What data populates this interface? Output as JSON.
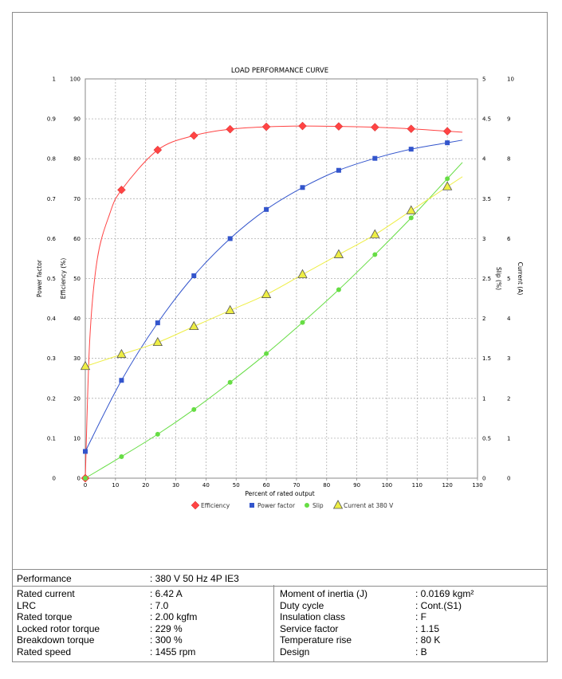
{
  "chart_data": {
    "type": "line",
    "title": "LOAD PERFORMANCE CURVE",
    "xlabel": "Percent of rated output",
    "xlim": [
      0,
      130
    ],
    "x_ticks": [
      0,
      10,
      20,
      30,
      40,
      50,
      60,
      70,
      80,
      90,
      100,
      110,
      120,
      130
    ],
    "grid": true,
    "legend_position": "bottom",
    "axes": [
      {
        "id": "pf",
        "label": "Power factor",
        "side": "left-outer",
        "range": [
          0,
          1
        ],
        "ticks": [
          "0",
          "0.1",
          "0.2",
          "0.3",
          "0.4",
          "0.5",
          "0.6",
          "0.7",
          "0.8",
          "0.9",
          "1"
        ]
      },
      {
        "id": "eff",
        "label": "Efficiency (%)",
        "side": "left-inner",
        "range": [
          0,
          100
        ],
        "ticks": [
          "0",
          "10",
          "20",
          "30",
          "40",
          "50",
          "60",
          "70",
          "80",
          "90",
          "100"
        ]
      },
      {
        "id": "slip",
        "label": "Slip (%)",
        "side": "right-inner",
        "range": [
          0,
          5
        ],
        "ticks": [
          "0",
          "0.5",
          "1",
          "1.5",
          "2",
          "2.5",
          "3",
          "3.5",
          "4",
          "4.5",
          "5"
        ]
      },
      {
        "id": "cur",
        "label": "Current (A)",
        "side": "right-outer",
        "range": [
          0,
          10
        ],
        "ticks": [
          "0",
          "1",
          "2",
          "3",
          "4",
          "5",
          "6",
          "7",
          "8",
          "9",
          "10"
        ]
      }
    ],
    "series": [
      {
        "name": "Efficiency",
        "axis": "eff",
        "color": "#ff4444",
        "marker": "diamond",
        "x": [
          0,
          12,
          24,
          36,
          48,
          60,
          72,
          84,
          96,
          108,
          120
        ],
        "y": [
          0,
          72.2,
          82.2,
          85.8,
          87.4,
          88.0,
          88.2,
          88.1,
          87.9,
          87.5,
          86.9
        ]
      },
      {
        "name": "Power factor",
        "axis": "pf",
        "color": "#3355cc",
        "marker": "square",
        "x": [
          0,
          12,
          24,
          36,
          48,
          60,
          72,
          84,
          96,
          108,
          120
        ],
        "y": [
          0.067,
          0.245,
          0.389,
          0.507,
          0.6,
          0.673,
          0.728,
          0.771,
          0.801,
          0.824,
          0.84
        ]
      },
      {
        "name": "Slip",
        "axis": "slip",
        "color": "#66dd44",
        "marker": "circle",
        "x": [
          0,
          12,
          24,
          36,
          48,
          60,
          72,
          84,
          96,
          108,
          120
        ],
        "y": [
          0,
          0.27,
          0.55,
          0.86,
          1.2,
          1.56,
          1.95,
          2.36,
          2.8,
          3.26,
          3.75
        ]
      },
      {
        "name": "Current at 380 V",
        "axis": "cur",
        "color": "#eeee44",
        "marker": "triangle",
        "x": [
          0,
          12,
          24,
          36,
          48,
          60,
          72,
          84,
          96,
          108,
          120
        ],
        "y": [
          2.8,
          3.1,
          3.4,
          3.8,
          4.2,
          4.6,
          5.1,
          5.6,
          6.1,
          6.7,
          7.3
        ]
      }
    ]
  },
  "table": {
    "performance_label": "Performance",
    "performance_value": ": 380 V 50 Hz 4P IE3",
    "left_rows": [
      {
        "label": "Rated current",
        "value": ": 6.42 A"
      },
      {
        "label": "LRC",
        "value": ": 7.0"
      },
      {
        "label": "Rated torque",
        "value": ": 2.00 kgfm"
      },
      {
        "label": "Locked rotor torque",
        "value": ": 229 %"
      },
      {
        "label": "Breakdown torque",
        "value": ": 300 %"
      },
      {
        "label": "Rated speed",
        "value": ": 1455 rpm"
      }
    ],
    "right_rows": [
      {
        "label": "Moment of inertia (J)",
        "value": ": 0.0169 kgm²"
      },
      {
        "label": "Duty cycle",
        "value": ": Cont.(S1)"
      },
      {
        "label": "Insulation class",
        "value": ": F"
      },
      {
        "label": "Service factor",
        "value": ": 1.15"
      },
      {
        "label": "Temperature rise",
        "value": ": 80 K"
      },
      {
        "label": "Design",
        "value": ": B"
      }
    ]
  }
}
